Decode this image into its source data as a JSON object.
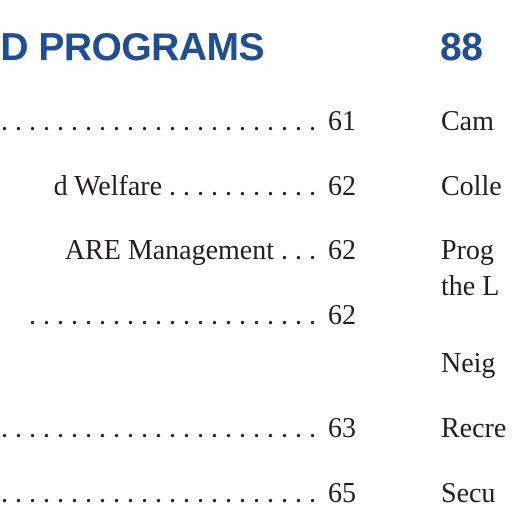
{
  "left_column": {
    "heading": "AND PROGRAMS",
    "entries": [
      {
        "text": ". . . . . . . . . . . . . . . . . . . . . . . .",
        "page": "61"
      },
      {
        "text": "d Welfare . . . . . . . . . . .",
        "page": "62"
      },
      {
        "text": "ARE Management . . .",
        "page": "62"
      },
      {
        "text": ". . . . . . . . . . . . . . . . . . . . .",
        "page": "62"
      },
      {
        "text": ". . . . . . . . . . . . . . . . . . . . . . . .",
        "page": "63"
      },
      {
        "text": ". . . . . . . . . . . . . . . . . . . . . . . .",
        "page": "65"
      }
    ]
  },
  "right_column": {
    "heading": "88",
    "items": [
      "Cam",
      "Colle",
      "Prog",
      "the L",
      "Neig",
      "Recre",
      "Secu"
    ]
  }
}
